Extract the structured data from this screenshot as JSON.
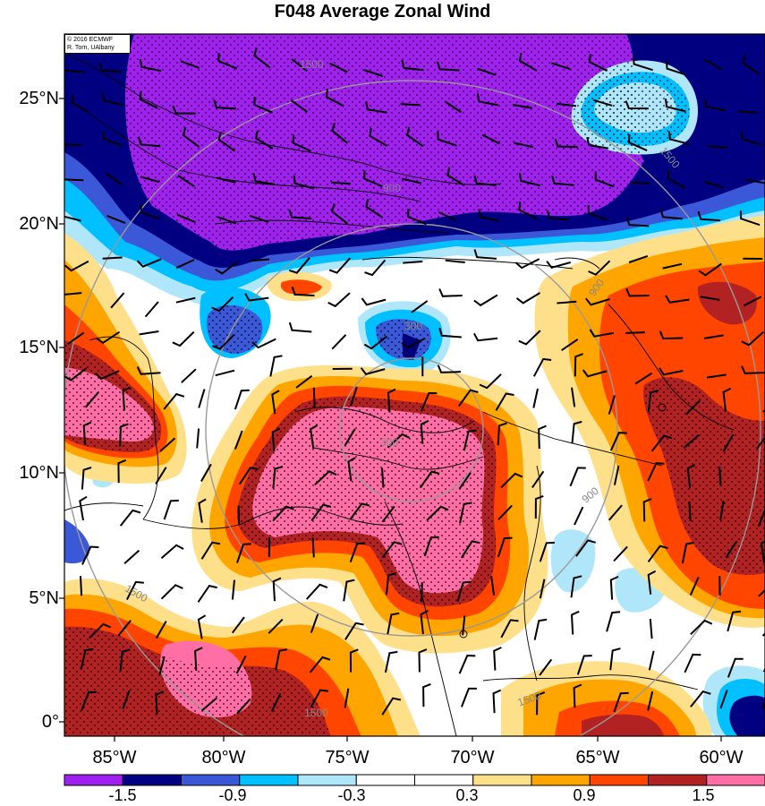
{
  "title": "F048 Average Zonal Wind",
  "credit": {
    "line1": "© 2016 ECMWF",
    "line2": "R. Torn, UAlbany"
  },
  "latitude_labels": [
    "25°N",
    "20°N",
    "15°N",
    "10°N",
    "5°N",
    "0°"
  ],
  "longitude_labels": [
    "85°W",
    "80°W",
    "75°W",
    "70°W",
    "65°W",
    "60°W"
  ],
  "colorbar": {
    "colors": [
      "#a020f0",
      "#000080",
      "#3a58d8",
      "#00c0ff",
      "#b0e6fa",
      "#ffffff",
      "#ffffff",
      "#ffe08a",
      "#ffa500",
      "#ff4500",
      "#b22222",
      "#ff6fa5"
    ],
    "labels": [
      "-1.5",
      "-0.9",
      "-0.3",
      "0.3",
      "0.9",
      "1.5"
    ]
  },
  "range_ring_labels": [
    "300",
    "300",
    "900",
    "900",
    "900",
    "1500",
    "1500",
    "1500",
    "1500",
    "1500"
  ],
  "map_extent": {
    "lon_min": -87,
    "lon_max": -59,
    "lat_min": -1,
    "lat_max": 27
  }
}
